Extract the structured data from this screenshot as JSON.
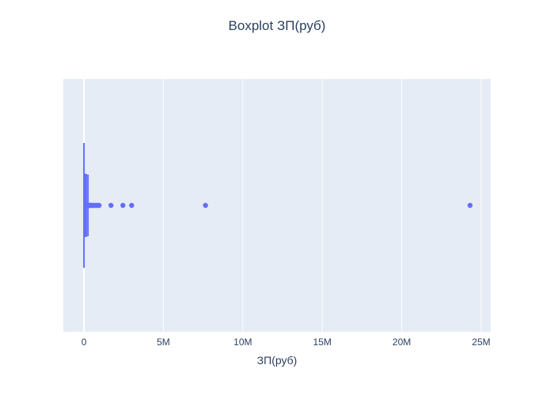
{
  "chart_data": {
    "type": "box",
    "orientation": "horizontal",
    "title": "Boxplot ЗП(руб)",
    "xlabel": "ЗП(руб)",
    "ylabel": "",
    "xlim": [
      -1300000,
      25600000
    ],
    "x_ticks": [
      0,
      5000000,
      10000000,
      15000000,
      20000000,
      25000000
    ],
    "x_tick_labels": [
      "0",
      "5M",
      "10M",
      "15M",
      "20M",
      "25M"
    ],
    "grid": true,
    "legend": "none",
    "series": [
      {
        "color": "#636efa",
        "box": {
          "min": 0,
          "q1": 40000,
          "median": 70000,
          "q3": 120000,
          "max": 250000
        },
        "outliers": [
          280000,
          320000,
          360000,
          400000,
          450000,
          500000,
          560000,
          620000,
          700000,
          780000,
          860000,
          950000,
          1700000,
          2450000,
          3000000,
          7650000,
          24300000
        ]
      }
    ],
    "colors": {
      "plot_bg": "#e5ecf6",
      "grid": "#ffffff",
      "series": "#636efa",
      "text": "#2a3f5f"
    }
  }
}
